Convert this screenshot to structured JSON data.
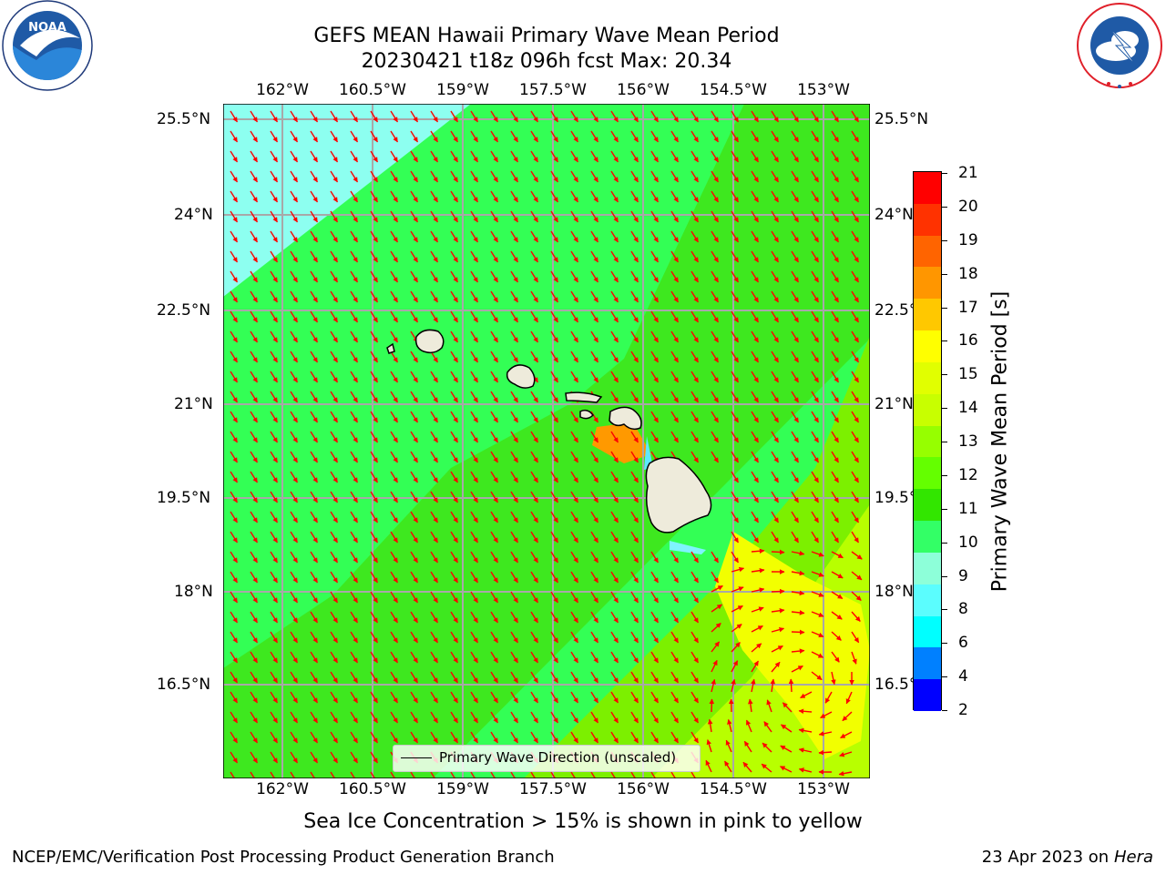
{
  "title": {
    "line1": "GEFS MEAN Hawaii Primary Wave Mean Period",
    "line2": "20230421 t18z 096h fcst   Max: 20.34"
  },
  "logos": {
    "noaa": {
      "text": "NOAA",
      "ring_text": "NATIONAL OCEANIC AND ATMOSPHERIC ADMINISTRATION · U.S. DEPARTMENT OF COMMERCE",
      "color": "#1f5aa6"
    },
    "nws": {
      "ring_text": "NATIONAL WEATHER SERVICE",
      "color": "#e0202a"
    }
  },
  "map": {
    "lon_ticks": [
      "162°W",
      "160.5°W",
      "159°W",
      "157.5°W",
      "156°W",
      "154.5°W",
      "153°W"
    ],
    "lat_ticks": [
      "25.5°N",
      "24°N",
      "22.5°N",
      "21°N",
      "19.5°N",
      "18°N",
      "16.5°N"
    ],
    "arrow_color": "#ff0000",
    "land_color": "#eeebdb"
  },
  "legend": {
    "label": "Primary Wave Direction (unscaled)"
  },
  "colorbar": {
    "title": "Primary Wave Mean Period [s]",
    "ticks": [
      "21",
      "20",
      "19",
      "18",
      "17",
      "16",
      "15",
      "14",
      "13",
      "12",
      "11",
      "10",
      "9",
      "8",
      "6",
      "4",
      "2"
    ],
    "colors": [
      "#ff0000",
      "#ff3200",
      "#ff6400",
      "#ff9600",
      "#ffc800",
      "#ffff00",
      "#e1ff00",
      "#c8ff00",
      "#96ff00",
      "#64ff00",
      "#32e600",
      "#33ff66",
      "#8dffd9",
      "#5bfdfe",
      "#00ffff",
      "#0080ff",
      "#0000ff"
    ]
  },
  "footer": {
    "note": "Sea Ice Concentration > 15% is shown in pink to yellow",
    "left": "NCEP/EMC/Verification Post Processing Product Generation Branch",
    "right_prefix": "23 Apr 2023 on ",
    "right_machine": "Hera"
  }
}
